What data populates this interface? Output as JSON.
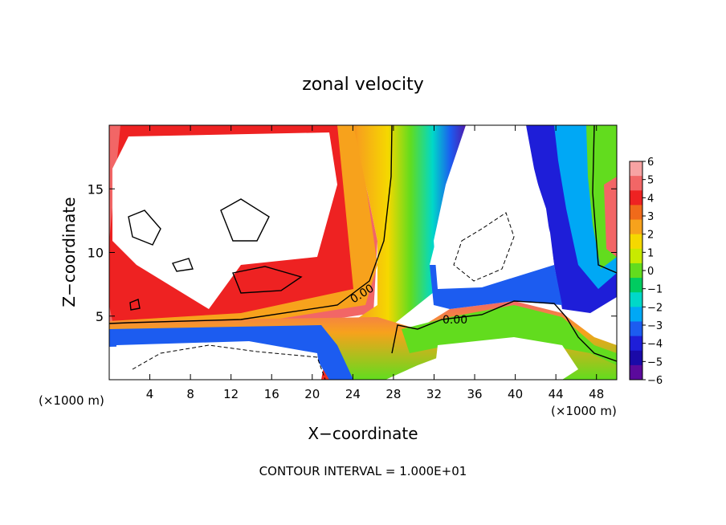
{
  "chart_data": {
    "type": "heatmap",
    "title": "zonal velocity",
    "xlabel": "X−coordinate",
    "ylabel": "Z−coordinate",
    "x_unit_label": "(×1000 m)",
    "x_unit_label_right": "(×1000 m)",
    "xlim": [
      0,
      50
    ],
    "ylim": [
      0,
      20
    ],
    "x_ticks": [
      4,
      8,
      12,
      16,
      20,
      24,
      28,
      32,
      36,
      40,
      44,
      48
    ],
    "y_ticks": [
      5,
      10,
      15
    ],
    "footer": "CONTOUR INTERVAL = 1.000E+01",
    "contour_labels": [
      "0.00",
      "0.00"
    ],
    "colorbar": {
      "ticks": [
        6,
        5,
        4,
        3,
        2,
        1,
        0,
        -1,
        -2,
        -3,
        -4,
        -5,
        -6
      ],
      "tick_labels": [
        "6",
        "5",
        "4",
        "3",
        "2",
        "1",
        "0",
        "−1",
        "−2",
        "−3",
        "−4",
        "−5",
        "−6"
      ],
      "colors": [
        "#f7a3a3",
        "#f26666",
        "#ee2222",
        "#f06a1a",
        "#f7a21c",
        "#f5d800",
        "#c8ea00",
        "#62dc1e",
        "#00cc60",
        "#00d8c8",
        "#00a8f5",
        "#1c5cf0",
        "#1e1ed8",
        "#1a0aa8",
        "#5b0a9c"
      ],
      "clip_color": "#ffffff"
    }
  }
}
